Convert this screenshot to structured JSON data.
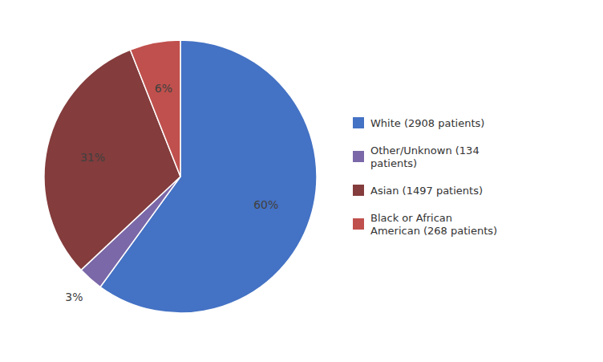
{
  "chart_data": {
    "type": "pie",
    "categories": [
      "White (2908 patients)",
      "Other/Unknown (134\npatients)",
      "Asian (1497 patients)",
      "Black or African\nAmerican (268 patients)"
    ],
    "values": [
      60,
      3,
      31,
      6
    ],
    "value_labels": [
      "60%",
      "3%",
      "31%",
      "6%"
    ],
    "colors": [
      "#4472C4",
      "#7B68A8",
      "#843C3C",
      "#C0504D"
    ],
    "data_labels": true,
    "legend": "right"
  }
}
